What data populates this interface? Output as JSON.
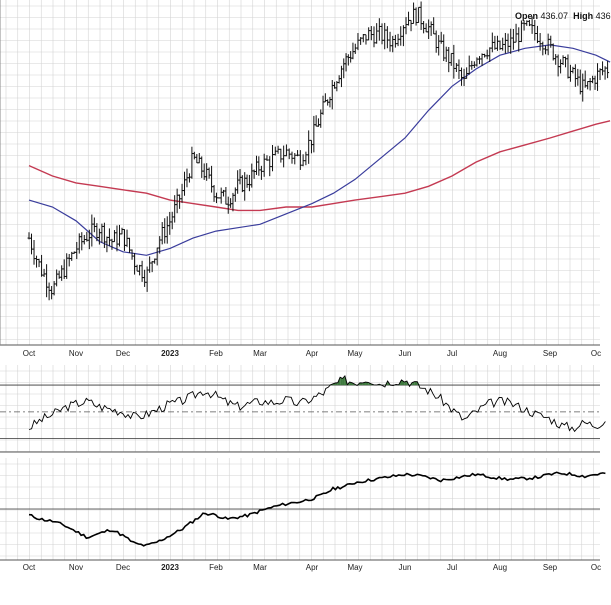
{
  "header": {
    "open_label": "Open",
    "open_value": "436.07",
    "high_label": "High",
    "high_value": "436"
  },
  "colors": {
    "price_bars": "#111111",
    "ma_fast": "#3a3d9c",
    "ma_slow": "#c43a52",
    "grid": "#d4d4d4",
    "rsi_fill": "#3f7a3f",
    "line": "#000000"
  },
  "chart_data": [
    {
      "type": "line",
      "panel": "price",
      "x_ticks": [
        "Oct",
        "Nov",
        "Dec",
        "2023",
        "Feb",
        "Mar",
        "Apr",
        "May",
        "Jun",
        "Jul",
        "Aug",
        "Sep",
        "Oc"
      ],
      "x_range": [
        0,
        12.3
      ],
      "ylim": [
        350,
        450
      ],
      "series": [
        {
          "kind": "ohlc",
          "x": [
            0,
            0.25,
            0.5,
            0.75,
            1,
            1.25,
            1.5,
            1.75,
            2,
            2.25,
            2.5,
            2.75,
            3,
            3.25,
            3.5,
            3.75,
            4,
            4.25,
            4.5,
            4.75,
            5,
            5.25,
            5.5,
            5.75,
            6,
            6.25,
            6.5,
            6.75,
            7,
            7.25,
            7.5,
            7.75,
            8,
            8.25,
            8.5,
            8.75,
            9,
            9.25,
            9.5,
            9.75,
            10,
            10.25,
            10.5,
            10.75,
            11,
            11.25,
            11.5,
            11.75,
            12,
            12.2
          ],
          "y": [
            381,
            372,
            366,
            372,
            378,
            382,
            384,
            380,
            382,
            374,
            370,
            380,
            386,
            394,
            404,
            400,
            394,
            392,
            396,
            398,
            402,
            404,
            406,
            404,
            410,
            418,
            426,
            432,
            436,
            440,
            440,
            438,
            444,
            446,
            442,
            436,
            432,
            426,
            434,
            436,
            436,
            438,
            442,
            440,
            436,
            432,
            428,
            424,
            428,
            430
          ]
        },
        {
          "kind": "moving-average",
          "x": [
            0,
            0.5,
            1,
            1.5,
            2,
            2.5,
            3,
            3.5,
            4,
            4.5,
            5,
            5.5,
            6,
            6.5,
            7,
            7.5,
            8,
            8.5,
            9,
            9.5,
            10,
            10.5,
            11,
            11.5,
            12,
            12.3
          ],
          "y": [
            392,
            390,
            386,
            380,
            377,
            376,
            378,
            381,
            383,
            384,
            385,
            388,
            391,
            394,
            398,
            404,
            410,
            418,
            425,
            430,
            434,
            436,
            437,
            436,
            434,
            432
          ]
        },
        {
          "kind": "moving-average",
          "x": [
            0,
            0.5,
            1,
            1.5,
            2,
            2.5,
            3,
            3.5,
            4,
            4.5,
            5,
            5.5,
            6,
            6.5,
            7,
            7.5,
            8,
            8.5,
            9,
            9.5,
            10,
            10.5,
            11,
            11.5,
            12,
            12.3
          ],
          "y": [
            402,
            399,
            397,
            396,
            395,
            394,
            392,
            391,
            390,
            389,
            389,
            390,
            390,
            391,
            392,
            393,
            394,
            396,
            399,
            403,
            406,
            408,
            410,
            412,
            414,
            415
          ]
        }
      ]
    },
    {
      "type": "area",
      "panel": "rsi",
      "x_ticks": [
        "Oct",
        "Nov",
        "Dec",
        "2023",
        "Feb",
        "Mar",
        "Apr",
        "May",
        "Jun",
        "Jul",
        "Aug",
        "Sep",
        "Oc"
      ],
      "x_range": [
        0,
        12.3
      ],
      "ylim": [
        20,
        85
      ],
      "reference_lines": [
        30,
        50,
        70
      ],
      "series": [
        {
          "x": [
            0,
            0.25,
            0.5,
            0.75,
            1,
            1.25,
            1.5,
            1.75,
            2,
            2.25,
            2.5,
            2.75,
            3,
            3.25,
            3.5,
            3.75,
            4,
            4.25,
            4.5,
            4.75,
            5,
            5.25,
            5.5,
            5.75,
            6,
            6.25,
            6.5,
            6.75,
            7,
            7.25,
            7.5,
            7.75,
            8,
            8.25,
            8.5,
            8.75,
            9,
            9.25,
            9.5,
            9.75,
            10,
            10.25,
            10.5,
            10.75,
            11,
            11.25,
            11.5,
            11.75,
            12,
            12.2
          ],
          "y": [
            38,
            44,
            48,
            53,
            56,
            58,
            54,
            52,
            50,
            46,
            48,
            52,
            56,
            58,
            62,
            66,
            62,
            57,
            54,
            56,
            58,
            57,
            59,
            56,
            60,
            64,
            70,
            74,
            72,
            75,
            71,
            73,
            74,
            70,
            66,
            60,
            52,
            44,
            50,
            56,
            58,
            56,
            52,
            48,
            45,
            40,
            38,
            42,
            40,
            44
          ]
        }
      ]
    },
    {
      "type": "line",
      "panel": "lower",
      "x_ticks": [
        "Oct",
        "Nov",
        "Dec",
        "2023",
        "Feb",
        "Mar",
        "Apr",
        "May",
        "Jun",
        "Jul",
        "Aug",
        "Sep",
        "Oc"
      ],
      "x_range": [
        0,
        12.3
      ],
      "ylim": [
        0,
        100
      ],
      "reference_lines": [
        50
      ],
      "series": [
        {
          "x": [
            0,
            0.25,
            0.5,
            0.75,
            1,
            1.25,
            1.5,
            1.75,
            2,
            2.25,
            2.5,
            2.75,
            3,
            3.25,
            3.5,
            3.75,
            4,
            4.25,
            4.5,
            4.75,
            5,
            5.25,
            5.5,
            5.75,
            6,
            6.25,
            6.5,
            6.75,
            7,
            7.25,
            7.5,
            7.75,
            8,
            8.25,
            8.5,
            8.75,
            9,
            9.25,
            9.5,
            9.75,
            10,
            10.25,
            10.5,
            10.75,
            11,
            11.25,
            11.5,
            11.75,
            12,
            12.2
          ],
          "y": [
            44,
            40,
            38,
            34,
            28,
            22,
            26,
            30,
            24,
            16,
            14,
            18,
            24,
            30,
            38,
            46,
            44,
            40,
            42,
            44,
            48,
            52,
            55,
            57,
            60,
            64,
            70,
            72,
            76,
            78,
            80,
            82,
            84,
            83,
            81,
            78,
            80,
            82,
            84,
            82,
            80,
            79,
            80,
            81,
            84,
            85,
            84,
            82,
            84,
            85
          ]
        }
      ]
    }
  ]
}
